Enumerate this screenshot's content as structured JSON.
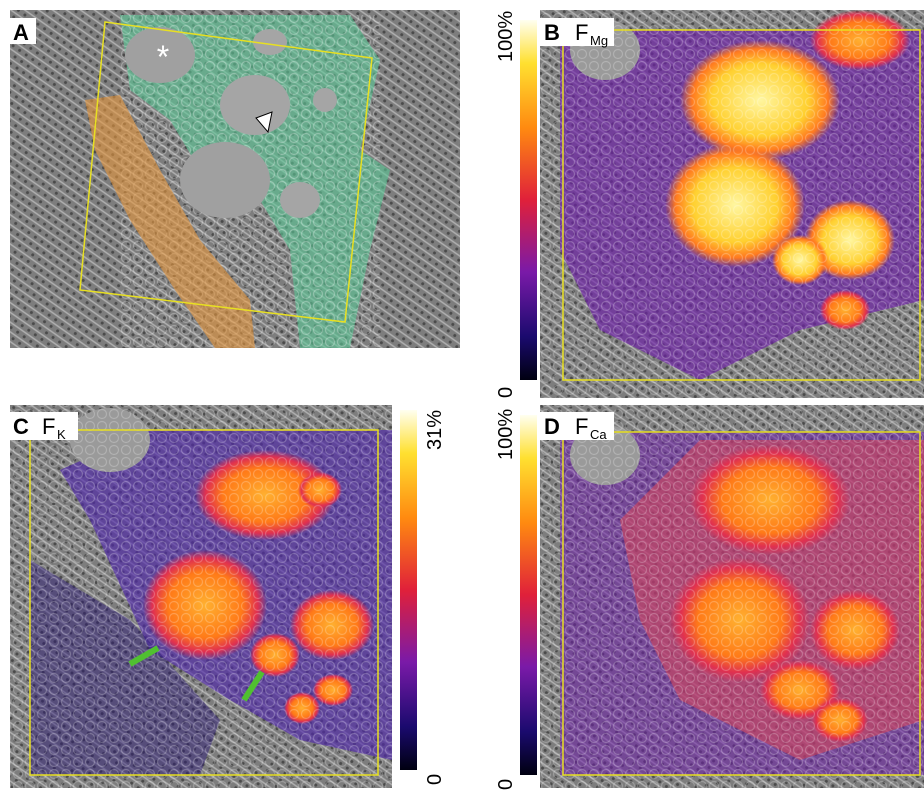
{
  "panels": [
    {
      "label": "A",
      "annotation": "*"
    },
    {
      "label": "B",
      "symbol": "F",
      "element": "Mg",
      "scale_max": "100%",
      "scale_min": "0"
    },
    {
      "label": "C",
      "symbol": "F",
      "element": "K",
      "scale_max": "31%",
      "scale_min": "0"
    },
    {
      "label": "D",
      "symbol": "F",
      "element": "Ca",
      "scale_max": "100%",
      "scale_min": "0"
    }
  ]
}
